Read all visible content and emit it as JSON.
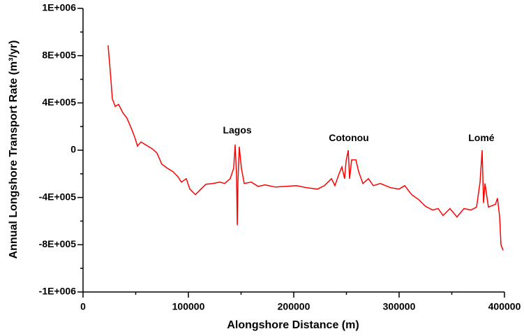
{
  "chart_data": {
    "type": "line",
    "x_label": "Alongshore Distance (m)",
    "y_label": "Annual Longshore Transport Rate (m³/yr)",
    "xlim": [
      0,
      400000
    ],
    "xticks": [
      0,
      100000,
      200000,
      300000,
      400000
    ],
    "ylim": [
      -1200000,
      1200000
    ],
    "yticks": [
      {
        "value": -1200000,
        "label": "-1E+006"
      },
      {
        "value": -800000,
        "label": "-8E+005"
      },
      {
        "value": -400000,
        "label": "-4E+005"
      },
      0,
      {
        "value": 400000,
        "label": "4E+005"
      },
      {
        "value": 800000,
        "label": "8E+005"
      },
      {
        "value": 1200000,
        "label": "1E+006"
      }
    ],
    "annotations": [
      {
        "text": "Lagos",
        "x": 146400,
        "y": 165000
      },
      {
        "text": "Cotonou",
        "x": 252300,
        "y": 100000
      },
      {
        "text": "Lomé",
        "x": 378100,
        "y": 100000
      }
    ],
    "series": [
      {
        "color": "#ff0000",
        "x": [
          23800,
          25800,
          27800,
          30500,
          33800,
          37700,
          41700,
          45700,
          49000,
          51700,
          55000,
          60300,
          65600,
          70200,
          74800,
          80100,
          85400,
          90000,
          93400,
          98000,
          101300,
          106600,
          111900,
          116600,
          123200,
          129800,
          134400,
          139700,
          143000,
          144400,
          145700,
          146400,
          147000,
          148300,
          150300,
          153000,
          159600,
          166200,
          172800,
          182800,
          192700,
          202600,
          212600,
          222500,
          229100,
          235800,
          239100,
          243000,
          245700,
          248300,
          249700,
          251700,
          253000,
          255000,
          259000,
          261600,
          265600,
          270900,
          275500,
          282100,
          292100,
          300000,
          305300,
          311900,
          318500,
          325200,
          331800,
          337100,
          341700,
          348300,
          354900,
          361600,
          368200,
          373500,
          376800,
          378800,
          380100,
          381500,
          384800,
          391400,
          393400,
          395400,
          396700,
          398700
        ],
        "values": [
          888000,
          670000,
          435000,
          370000,
          388000,
          318000,
          270000,
          188000,
          112000,
          35000,
          70000,
          41000,
          12000,
          -24000,
          -118000,
          -153000,
          -182000,
          -224000,
          -270000,
          -241000,
          -329000,
          -376000,
          -329000,
          -288000,
          -282000,
          -270000,
          -282000,
          -241000,
          -153000,
          47000,
          -212000,
          -635000,
          -270000,
          29000,
          -153000,
          -282000,
          -270000,
          -306000,
          -294000,
          -312000,
          -306000,
          -300000,
          -318000,
          -329000,
          -300000,
          -241000,
          -300000,
          -200000,
          -141000,
          -241000,
          -94000,
          0,
          -241000,
          -82000,
          -82000,
          -182000,
          -282000,
          -241000,
          -300000,
          -282000,
          -318000,
          -329000,
          -300000,
          -376000,
          -418000,
          -476000,
          -506000,
          -494000,
          -553000,
          -494000,
          -565000,
          -494000,
          -506000,
          -482000,
          -270000,
          0,
          -447000,
          -282000,
          -482000,
          -459000,
          -406000,
          -565000,
          -800000,
          -847000
        ]
      }
    ]
  }
}
